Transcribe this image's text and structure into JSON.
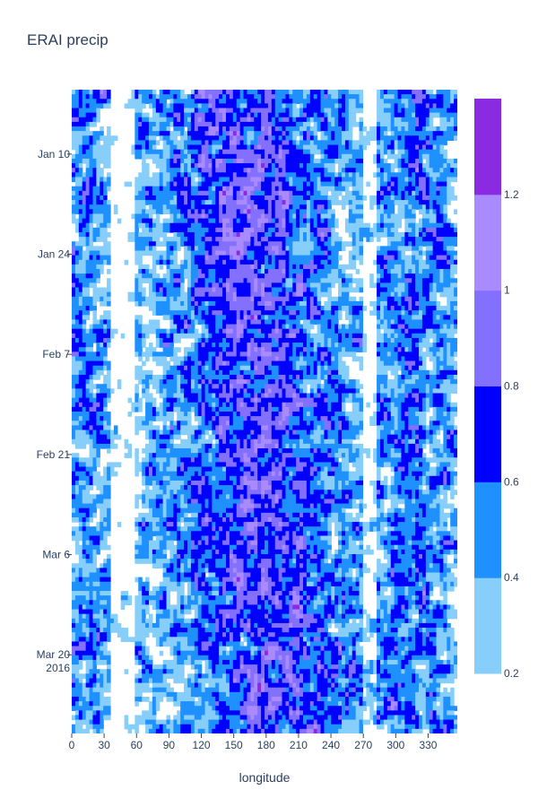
{
  "chart_data": {
    "type": "heatmap",
    "title": "ERAI precip",
    "xlabel": "longitude",
    "ylabel": "",
    "xlim": [
      0,
      357
    ],
    "ylim": [
      "2016-01-01",
      "2016-03-31"
    ],
    "x_ticks": [
      0,
      30,
      60,
      90,
      120,
      150,
      180,
      210,
      240,
      270,
      300,
      330
    ],
    "y_ticks": [
      {
        "date": "2016-01-10",
        "label": "Jan 10"
      },
      {
        "date": "2016-01-24",
        "label": "Jan 24"
      },
      {
        "date": "2016-02-07",
        "label": "Feb 7"
      },
      {
        "date": "2016-02-21",
        "label": "Feb 21"
      },
      {
        "date": "2016-03-06",
        "label": "Mar 6"
      },
      {
        "date": "2016-03-20",
        "label": "Mar 20",
        "sublabel": "2016"
      }
    ],
    "colorscale": {
      "levels": [
        0.2,
        0.4,
        0.6,
        0.8,
        1.0,
        1.2
      ],
      "tick_labels": [
        "0.2",
        "0.4",
        "0.6",
        "0.8",
        "1",
        "1.2"
      ],
      "colors": [
        "#87cefa",
        "#1e90ff",
        "#0000ff",
        "#8470ff",
        "#a98bff",
        "#8a2be2"
      ]
    }
  }
}
